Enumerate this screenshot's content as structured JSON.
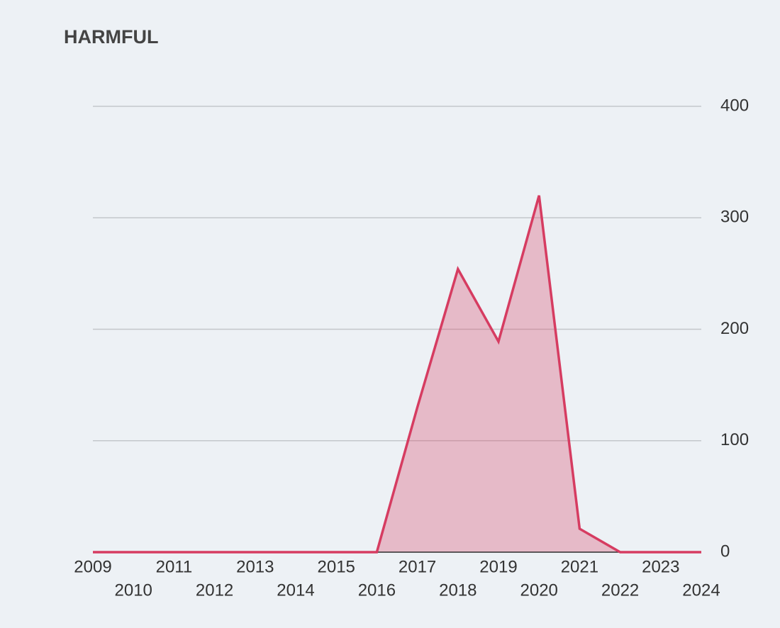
{
  "chart_data": {
    "type": "area",
    "title": "HARMFUL",
    "x": [
      2009,
      2010,
      2011,
      2012,
      2013,
      2014,
      2015,
      2016,
      2017,
      2018,
      2019,
      2020,
      2021,
      2022,
      2023,
      2024
    ],
    "series": [
      {
        "color": "#d63c61",
        "values": [
          0,
          0,
          0,
          0,
          0,
          0,
          0,
          0,
          130,
          254,
          189,
          320,
          21,
          0,
          0,
          0
        ]
      }
    ],
    "xlim": [
      2009,
      2024
    ],
    "xticks": [
      2009,
      2010,
      2011,
      2012,
      2013,
      2014,
      2015,
      2016,
      2017,
      2018,
      2019,
      2020,
      2021,
      2022,
      2023,
      2024
    ],
    "ylim": [
      0,
      400
    ],
    "yticks": [
      0,
      100,
      200,
      300,
      400
    ],
    "grid": true
  }
}
